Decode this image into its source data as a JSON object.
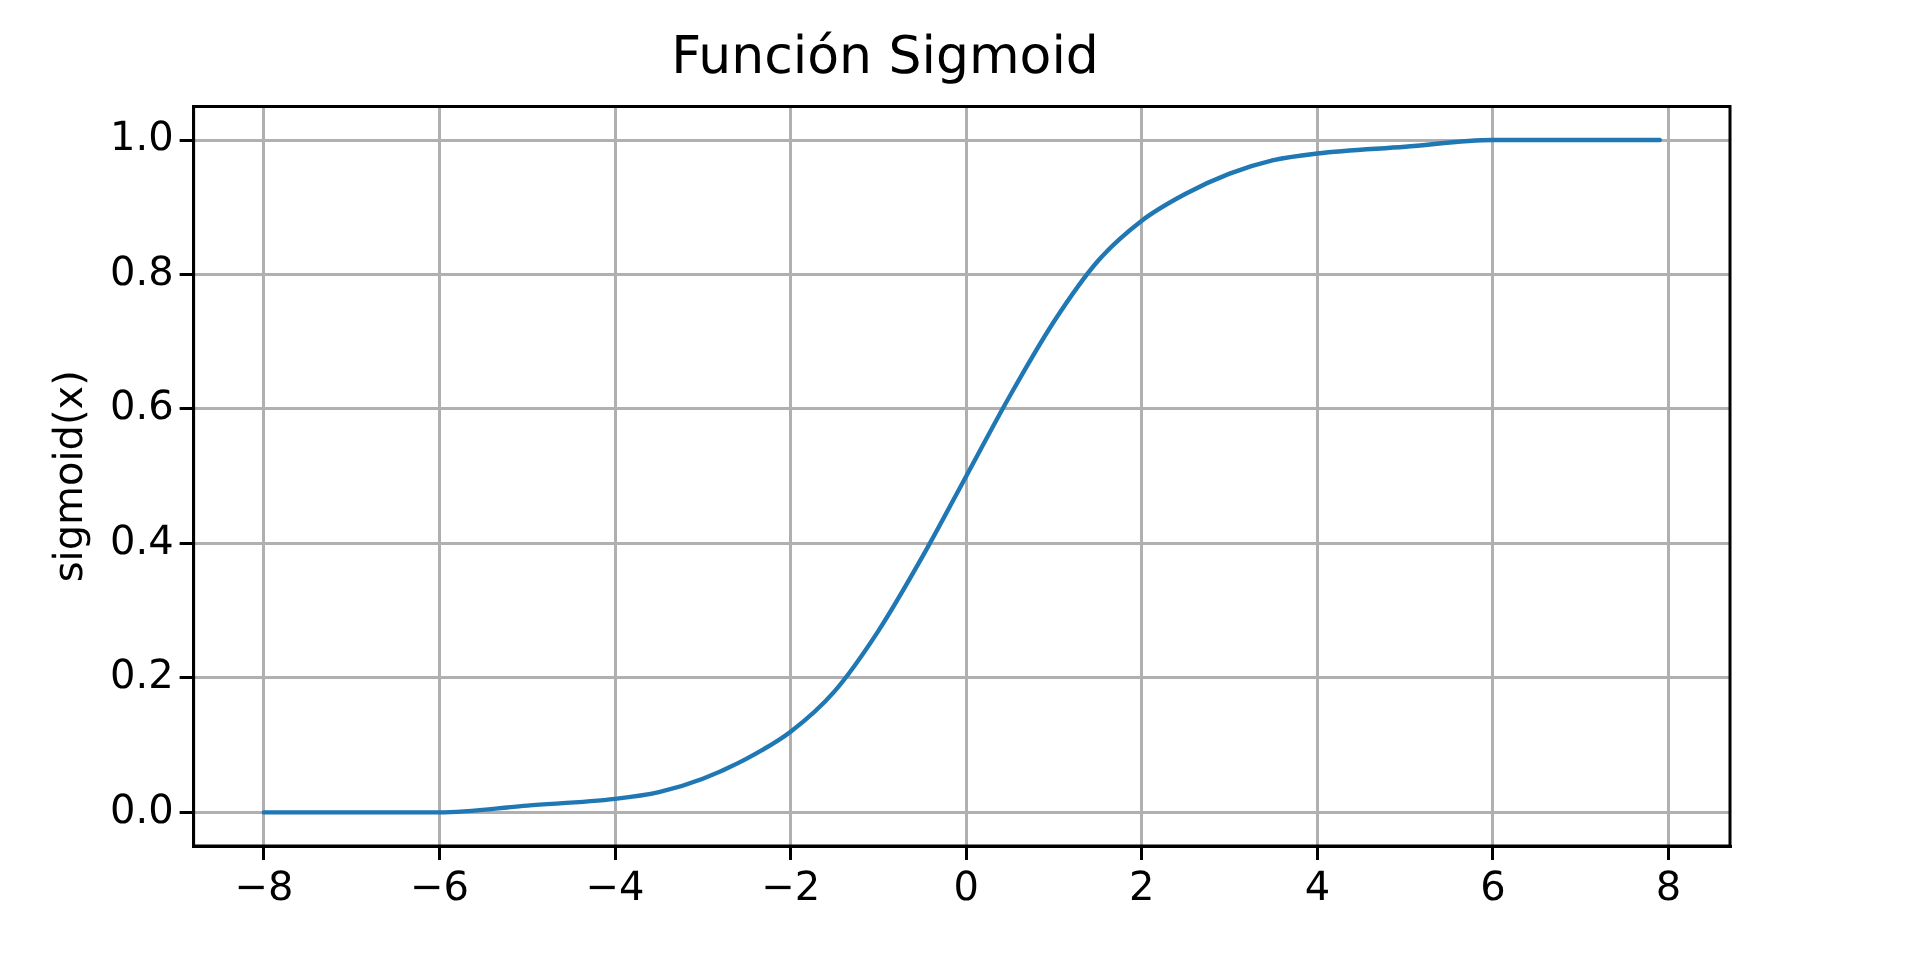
{
  "chart_data": {
    "type": "line",
    "title": "Función Sigmoid",
    "ylabel": "sigmoid(x)",
    "x": [
      -8,
      -7,
      -6,
      -5,
      -4,
      -3.5,
      -3,
      -2.5,
      -2,
      -1.5,
      -1,
      -0.5,
      0,
      0.5,
      1,
      1.5,
      2,
      2.5,
      3,
      3.5,
      4,
      5,
      6,
      7,
      7.9
    ],
    "series": [
      {
        "color": "#1f77b4",
        "values": [
          0.0,
          0.0,
          0.0,
          0.01,
          0.02,
          0.03,
          0.05,
          0.08,
          0.12,
          0.18,
          0.27,
          0.38,
          0.5,
          0.62,
          0.73,
          0.82,
          0.88,
          0.92,
          0.95,
          0.97,
          0.98,
          0.99,
          1.0,
          1.0,
          1.0
        ]
      }
    ],
    "xlim": [
      -8.8,
      8.7
    ],
    "xticks": [
      -8,
      -6,
      -4,
      -2,
      0,
      2,
      4,
      6,
      8
    ],
    "ylim": [
      -0.05,
      1.05
    ],
    "yticks": [
      {
        "value": 0,
        "label": "0.0"
      },
      {
        "value": 0.2,
        "label": "0.2"
      },
      {
        "value": 0.4,
        "label": "0.4"
      },
      {
        "value": 0.6,
        "label": "0.6"
      },
      {
        "value": 0.8,
        "label": "0.8"
      },
      {
        "value": 1,
        "label": "1.0"
      }
    ],
    "grid": true,
    "legend": false,
    "marker": "none",
    "line_style": "solid"
  }
}
